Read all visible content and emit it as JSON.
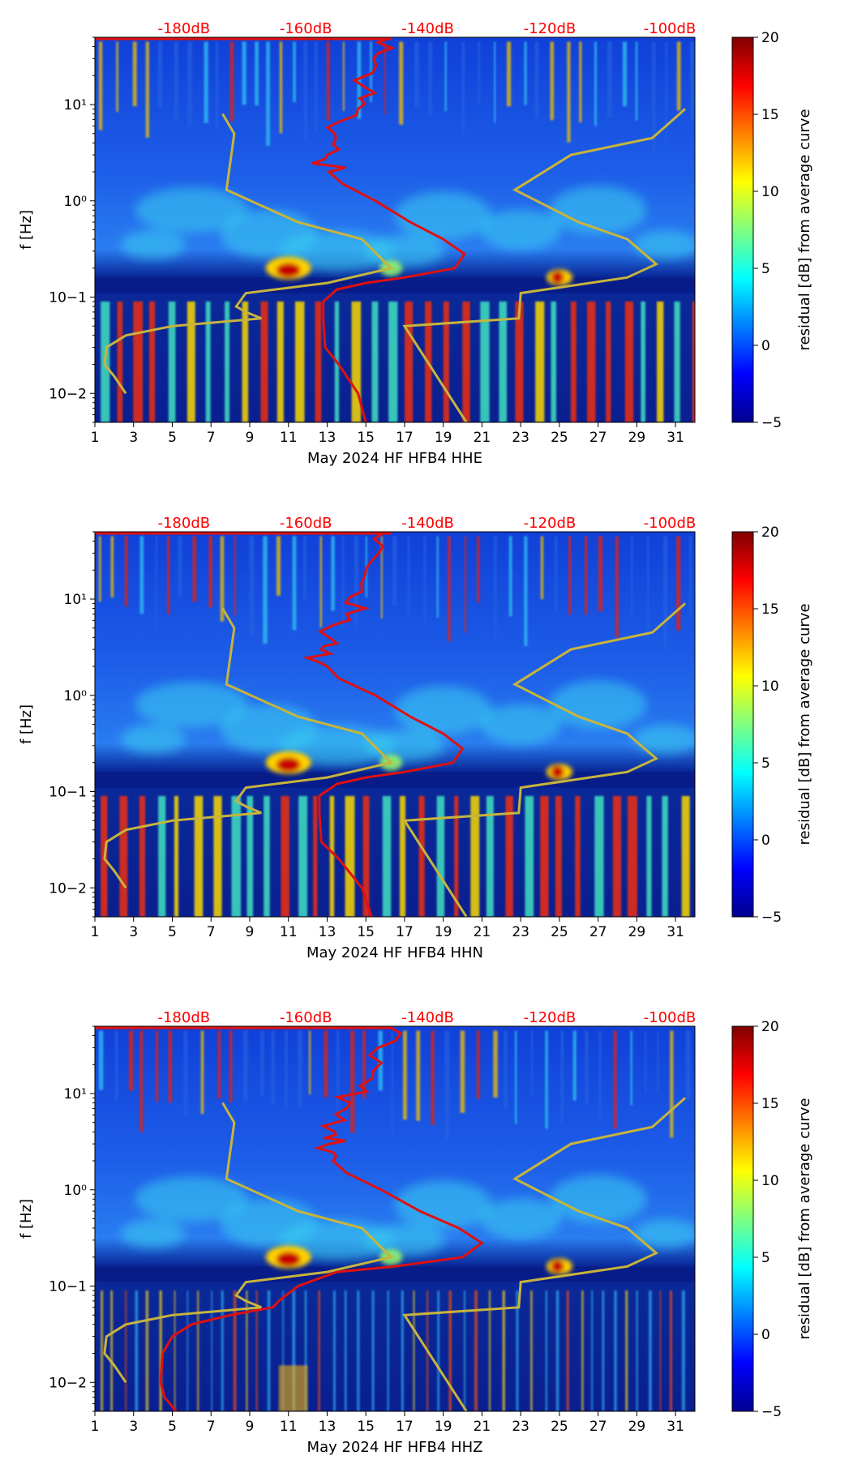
{
  "chart_data": [
    {
      "type": "heatmap",
      "xlabel": "May 2024 HF HFB4  HHE",
      "ylabel": "f [Hz]",
      "colorbar_label": "residual [dB] from average curve",
      "x_ticks": [
        "1",
        "3",
        "5",
        "7",
        "9",
        "11",
        "13",
        "15",
        "17",
        "19",
        "21",
        "23",
        "25",
        "27",
        "29",
        "31"
      ],
      "y_ticks": [
        "10−2",
        "10−1",
        "10⁰",
        "10¹"
      ],
      "colorbar_ticks": [
        "−5",
        "0",
        "5",
        "10",
        "15",
        "20"
      ],
      "top_labels": [
        "-180dB",
        "-160dB",
        "-140dB",
        "-120dB",
        "-100dB"
      ],
      "xlim": [
        1,
        32
      ],
      "ylim_hz": [
        0.005,
        50
      ],
      "clim": [
        -5,
        20
      ],
      "red_curve": [
        [
          16.3,
          50
        ],
        [
          15.4,
          30
        ],
        [
          15.0,
          15
        ],
        [
          14.6,
          9
        ],
        [
          13.4,
          5
        ],
        [
          13.0,
          3
        ],
        [
          13.1,
          2
        ],
        [
          13.8,
          1.5
        ],
        [
          15.5,
          1.0
        ],
        [
          17.3,
          0.6
        ],
        [
          19.0,
          0.4
        ],
        [
          20.1,
          0.28
        ],
        [
          19.6,
          0.2
        ],
        [
          17.0,
          0.16
        ],
        [
          15.0,
          0.14
        ],
        [
          13.5,
          0.12
        ],
        [
          12.8,
          0.09
        ],
        [
          12.8,
          0.06
        ],
        [
          12.9,
          0.03
        ],
        [
          13.6,
          0.02
        ],
        [
          14.6,
          0.01
        ],
        [
          15.0,
          0.005
        ]
      ],
      "yellow_curve_low": [
        [
          7.6,
          8
        ],
        [
          8.2,
          5
        ],
        [
          7.8,
          1.3
        ],
        [
          11.5,
          0.6
        ],
        [
          14.8,
          0.4
        ],
        [
          16.3,
          0.2
        ],
        [
          13.0,
          0.14
        ],
        [
          8.8,
          0.11
        ],
        [
          8.3,
          0.08
        ],
        [
          8.8,
          0.07
        ],
        [
          9.6,
          0.06
        ],
        [
          5.0,
          0.05
        ],
        [
          2.6,
          0.04
        ],
        [
          1.6,
          0.03
        ],
        [
          1.5,
          0.02
        ],
        [
          2.0,
          0.015
        ],
        [
          2.6,
          0.01
        ]
      ],
      "yellow_curve_high": [
        [
          31.5,
          9
        ],
        [
          29.8,
          4.5
        ],
        [
          25.6,
          3
        ],
        [
          22.7,
          1.3
        ],
        [
          26.0,
          0.6
        ],
        [
          28.5,
          0.4
        ],
        [
          30.0,
          0.22
        ],
        [
          28.5,
          0.16
        ],
        [
          23.0,
          0.11
        ],
        [
          22.9,
          0.06
        ],
        [
          17.0,
          0.05
        ],
        [
          20.2,
          0.005
        ]
      ]
    },
    {
      "type": "heatmap",
      "xlabel": "May 2024 HF HFB4  HHN",
      "ylabel": "f [Hz]",
      "colorbar_label": "residual [dB] from average curve",
      "x_ticks": [
        "1",
        "3",
        "5",
        "7",
        "9",
        "11",
        "13",
        "15",
        "17",
        "19",
        "21",
        "23",
        "25",
        "27",
        "29",
        "31"
      ],
      "y_ticks": [
        "10−2",
        "10−1",
        "10⁰",
        "10¹"
      ],
      "colorbar_ticks": [
        "−5",
        "0",
        "5",
        "10",
        "15",
        "20"
      ],
      "top_labels": [
        "-180dB",
        "-160dB",
        "-140dB",
        "-120dB",
        "-100dB"
      ],
      "xlim": [
        1,
        32
      ],
      "ylim_hz": [
        0.005,
        50
      ],
      "clim": [
        -5,
        20
      ],
      "red_curve": [
        [
          16.0,
          50
        ],
        [
          15.3,
          25
        ],
        [
          14.8,
          12
        ],
        [
          14.0,
          7
        ],
        [
          13.1,
          4
        ],
        [
          12.7,
          3
        ],
        [
          13.0,
          2
        ],
        [
          13.6,
          1.5
        ],
        [
          15.5,
          1.0
        ],
        [
          17.3,
          0.6
        ],
        [
          19.0,
          0.4
        ],
        [
          20.0,
          0.28
        ],
        [
          19.5,
          0.2
        ],
        [
          17.0,
          0.16
        ],
        [
          15.0,
          0.14
        ],
        [
          13.5,
          0.12
        ],
        [
          12.6,
          0.09
        ],
        [
          12.6,
          0.06
        ],
        [
          12.7,
          0.03
        ],
        [
          13.6,
          0.02
        ],
        [
          14.8,
          0.01
        ],
        [
          15.3,
          0.005
        ]
      ],
      "yellow_curve_low": [
        [
          7.6,
          8
        ],
        [
          8.2,
          5
        ],
        [
          7.8,
          1.3
        ],
        [
          11.5,
          0.6
        ],
        [
          14.8,
          0.4
        ],
        [
          16.3,
          0.2
        ],
        [
          13.0,
          0.14
        ],
        [
          8.8,
          0.11
        ],
        [
          8.3,
          0.08
        ],
        [
          8.8,
          0.07
        ],
        [
          9.6,
          0.06
        ],
        [
          5.0,
          0.05
        ],
        [
          2.6,
          0.04
        ],
        [
          1.6,
          0.03
        ],
        [
          1.5,
          0.02
        ],
        [
          2.0,
          0.015
        ],
        [
          2.6,
          0.01
        ]
      ],
      "yellow_curve_high": [
        [
          31.5,
          9
        ],
        [
          29.8,
          4.5
        ],
        [
          25.6,
          3
        ],
        [
          22.7,
          1.3
        ],
        [
          26.0,
          0.6
        ],
        [
          28.5,
          0.4
        ],
        [
          30.0,
          0.22
        ],
        [
          28.5,
          0.16
        ],
        [
          23.0,
          0.11
        ],
        [
          22.9,
          0.06
        ],
        [
          17.0,
          0.05
        ],
        [
          20.2,
          0.005
        ]
      ]
    },
    {
      "type": "heatmap",
      "xlabel": "May 2024 HF HFB4  HHZ",
      "ylabel": "f [Hz]",
      "colorbar_label": "residual [dB] from average curve",
      "x_ticks": [
        "1",
        "3",
        "5",
        "7",
        "9",
        "11",
        "13",
        "15",
        "17",
        "19",
        "21",
        "23",
        "25",
        "27",
        "29",
        "31"
      ],
      "y_ticks": [
        "10−2",
        "10−1",
        "10⁰",
        "10¹"
      ],
      "colorbar_ticks": [
        "−5",
        "0",
        "5",
        "10",
        "15",
        "20"
      ],
      "top_labels": [
        "-180dB",
        "-160dB",
        "-140dB",
        "-120dB",
        "-100dB"
      ],
      "xlim": [
        1,
        32
      ],
      "ylim_hz": [
        0.005,
        50
      ],
      "clim": [
        -5,
        20
      ],
      "red_curve": [
        [
          16.2,
          50
        ],
        [
          15.2,
          25
        ],
        [
          14.7,
          12
        ],
        [
          14.0,
          7
        ],
        [
          13.4,
          4
        ],
        [
          13.1,
          3
        ],
        [
          13.3,
          2
        ],
        [
          14.0,
          1.5
        ],
        [
          15.8,
          1.0
        ],
        [
          17.8,
          0.6
        ],
        [
          19.8,
          0.4
        ],
        [
          21.0,
          0.28
        ],
        [
          20.0,
          0.2
        ],
        [
          16.5,
          0.16
        ],
        [
          13.5,
          0.14
        ],
        [
          11.5,
          0.1
        ],
        [
          10.5,
          0.07
        ],
        [
          10.2,
          0.06
        ],
        [
          8.0,
          0.05
        ],
        [
          6.0,
          0.04
        ],
        [
          5.0,
          0.03
        ],
        [
          4.5,
          0.02
        ],
        [
          4.4,
          0.01
        ],
        [
          4.6,
          0.007
        ],
        [
          5.2,
          0.005
        ]
      ],
      "yellow_curve_low": [
        [
          7.6,
          8
        ],
        [
          8.2,
          5
        ],
        [
          7.8,
          1.3
        ],
        [
          11.5,
          0.6
        ],
        [
          14.8,
          0.4
        ],
        [
          16.3,
          0.2
        ],
        [
          13.0,
          0.14
        ],
        [
          8.8,
          0.11
        ],
        [
          8.3,
          0.08
        ],
        [
          8.8,
          0.07
        ],
        [
          9.6,
          0.06
        ],
        [
          5.0,
          0.05
        ],
        [
          2.6,
          0.04
        ],
        [
          1.6,
          0.03
        ],
        [
          1.5,
          0.02
        ],
        [
          2.0,
          0.015
        ],
        [
          2.6,
          0.01
        ]
      ],
      "yellow_curve_high": [
        [
          31.5,
          9
        ],
        [
          29.8,
          4.5
        ],
        [
          25.6,
          3
        ],
        [
          22.7,
          1.3
        ],
        [
          26.0,
          0.6
        ],
        [
          28.5,
          0.4
        ],
        [
          30.0,
          0.22
        ],
        [
          28.5,
          0.16
        ],
        [
          23.0,
          0.11
        ],
        [
          22.9,
          0.06
        ],
        [
          17.0,
          0.05
        ],
        [
          20.2,
          0.005
        ]
      ]
    }
  ],
  "colors": {
    "red_line": "#e01010",
    "yellow_line": "#c8b43c",
    "top_label": "#ff0000",
    "axis": "#000000"
  }
}
